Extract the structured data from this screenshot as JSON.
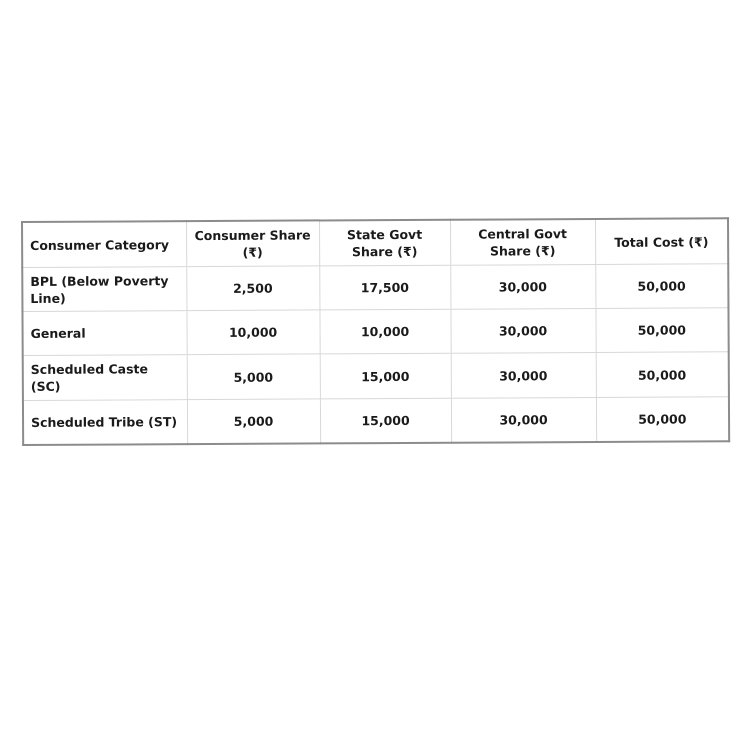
{
  "table": {
    "headers": [
      "Consumer Category",
      "Consumer Share (₹)",
      "State Govt Share (₹)",
      "Central Govt Share (₹)",
      "Total Cost (₹)"
    ],
    "rows": [
      [
        "BPL (Below Poverty Line)",
        "2,500",
        "17,500",
        "30,000",
        "50,000"
      ],
      [
        "General",
        "10,000",
        "10,000",
        "30,000",
        "50,000"
      ],
      [
        "Scheduled Caste (SC)",
        "5,000",
        "15,000",
        "30,000",
        "50,000"
      ],
      [
        "Scheduled Tribe (ST)",
        "5,000",
        "15,000",
        "30,000",
        "50,000"
      ]
    ]
  }
}
